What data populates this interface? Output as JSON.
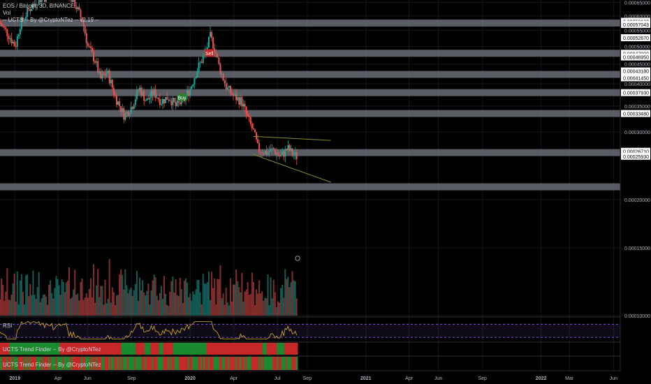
{
  "header": {
    "symbol_line": "EOS / Bitcoin, 3D, BINANCE",
    "volume_label": "Vol",
    "indicator_line": "-- UCTS -- By @CryptoNTez -- v2.19 --"
  },
  "panes": {
    "rsi_label": "RSI",
    "rsi_level": "50.00",
    "trend1_label": "UCTS Trend Finder -- By @CryptoNTez",
    "trend2_label": "UCTS Trend Finder -- By @CryptoNTez"
  },
  "colors": {
    "background": "#000000",
    "up": "#26a69a",
    "down": "#ef5350",
    "sr_zone": "#787b86",
    "rsi_line": "#c9a227",
    "rsi_band": "#7e57c2",
    "trendline": "#8d8a2a"
  },
  "signals": [
    {
      "label": "Sell",
      "date": "2020-02-10",
      "price": 0.0004799
    },
    {
      "label": "Buy",
      "date": "2019-12-15",
      "price": 0.000368
    }
  ],
  "chart_data": {
    "type": "candlestick",
    "title": "EOS / Bitcoin, 3D, BINANCE",
    "y_scale": "log",
    "ylim": [
      0.0001,
      0.00066
    ],
    "xlim": [
      "2018-12-01",
      "2022-06-15"
    ],
    "x_ticks": [
      "2019",
      "Apr",
      "Jun",
      "Sep",
      "2020",
      "Apr",
      "Jul",
      "Sep",
      "2021",
      "Apr",
      "Jun",
      "Sep",
      "2022",
      "Mar",
      "Jun"
    ],
    "x_tick_dates": [
      "2019-01-01",
      "2019-04-01",
      "2019-06-01",
      "2019-09-01",
      "2020-01-01",
      "2020-04-01",
      "2020-07-01",
      "2020-09-01",
      "2021-01-01",
      "2021-04-01",
      "2021-06-01",
      "2021-09-01",
      "2022-01-01",
      "2022-03-01",
      "2022-06-01"
    ],
    "y_ticks": [
      "0.00065000",
      "0.00060000",
      "0.00055000",
      "0.00050000",
      "0.00045000",
      "0.00040000",
      "0.00035000",
      "0.00030000",
      "0.00020000",
      "0.00015000",
      "0.00010000"
    ],
    "price_labels": [
      "0.00058100",
      "0.00057043",
      "0.00052670",
      "0.00047990",
      "0.00046950",
      "0.00043180",
      "0.00041450",
      "0.00037930",
      "0.00033480",
      "0.00026710",
      "0.00025930"
    ],
    "support_resistance_levels": [
      0.000575,
      0.0004799,
      0.000423,
      0.0003793,
      0.0003348,
      0.000265,
      0.000216
    ],
    "price_path": [
      [
        "2018-12-01",
        0.00058
      ],
      [
        "2018-12-20",
        0.00054
      ],
      [
        "2019-01-05",
        0.0005
      ],
      [
        "2019-01-15",
        0.00057
      ],
      [
        "2019-02-01",
        0.00062
      ],
      [
        "2019-02-20",
        0.00066
      ],
      [
        "2019-03-20",
        0.00068
      ],
      [
        "2019-04-20",
        0.00071
      ],
      [
        "2019-05-10",
        0.00064
      ],
      [
        "2019-05-25",
        0.00058
      ],
      [
        "2019-06-05",
        0.0005
      ],
      [
        "2019-06-20",
        0.00046
      ],
      [
        "2019-07-01",
        0.00041
      ],
      [
        "2019-07-15",
        0.00043
      ],
      [
        "2019-08-01",
        0.00037
      ],
      [
        "2019-08-20",
        0.00033
      ],
      [
        "2019-09-05",
        0.00035
      ],
      [
        "2019-09-20",
        0.00039
      ],
      [
        "2019-10-05",
        0.00036
      ],
      [
        "2019-10-20",
        0.00038
      ],
      [
        "2019-11-05",
        0.00036
      ],
      [
        "2019-11-20",
        0.00037
      ],
      [
        "2019-12-05",
        0.00035
      ],
      [
        "2019-12-20",
        0.00036
      ],
      [
        "2020-01-05",
        0.00039
      ],
      [
        "2020-01-20",
        0.00044
      ],
      [
        "2020-02-05",
        0.00048
      ],
      [
        "2020-02-15",
        0.00053
      ],
      [
        "2020-02-25",
        0.00049
      ],
      [
        "2020-03-05",
        0.00044
      ],
      [
        "2020-03-20",
        0.00039
      ],
      [
        "2020-04-05",
        0.00037
      ],
      [
        "2020-04-20",
        0.00036
      ],
      [
        "2020-05-01",
        0.00033
      ],
      [
        "2020-05-15",
        0.0003
      ],
      [
        "2020-05-25",
        0.00027
      ],
      [
        "2020-06-10",
        0.000265
      ],
      [
        "2020-06-25",
        0.00027
      ],
      [
        "2020-07-10",
        0.000258
      ],
      [
        "2020-07-25",
        0.000272
      ],
      [
        "2020-08-05",
        0.000262
      ],
      [
        "2020-08-12",
        0.000259
      ]
    ]
  }
}
